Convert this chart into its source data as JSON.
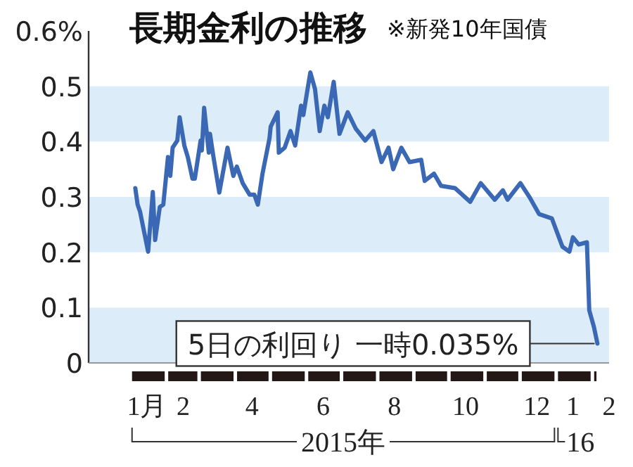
{
  "chart_data": {
    "type": "line",
    "title": "長期金利の推移",
    "subtitle": "※新発10年国債",
    "x": [
      "2015-01-05",
      "2015-01-07",
      "2015-01-09",
      "2015-01-16",
      "2015-01-20",
      "2015-01-22",
      "2015-01-26",
      "2015-01-29",
      "2015-02-02",
      "2015-02-04",
      "2015-02-06",
      "2015-02-10",
      "2015-02-12",
      "2015-02-16",
      "2015-02-19",
      "2015-02-23",
      "2015-02-25",
      "2015-03-02",
      "2015-03-03",
      "2015-03-05",
      "2015-03-09",
      "2015-03-10",
      "2015-03-13",
      "2015-03-18",
      "2015-03-25",
      "2015-03-30",
      "2015-04-02",
      "2015-04-07",
      "2015-04-13",
      "2015-04-17",
      "2015-04-20",
      "2015-04-24",
      "2015-04-30",
      "2015-05-01",
      "2015-05-07",
      "2015-05-08",
      "2015-05-13",
      "2015-05-18",
      "2015-05-22",
      "2015-05-27",
      "2015-05-29",
      "2015-06-01",
      "2015-06-04",
      "2015-06-08",
      "2015-06-12",
      "2015-06-16",
      "2015-06-19",
      "2015-06-24",
      "2015-06-29",
      "2015-07-06",
      "2015-07-13",
      "2015-07-21",
      "2015-07-28",
      "2015-08-04",
      "2015-08-10",
      "2015-08-14",
      "2015-08-21",
      "2015-08-28",
      "2015-09-07",
      "2015-09-10",
      "2015-09-18",
      "2015-09-24",
      "2015-10-06",
      "2015-10-19",
      "2015-10-28",
      "2015-11-09",
      "2015-11-16",
      "2015-11-20",
      "2015-12-01",
      "2015-12-09",
      "2015-12-17",
      "2015-12-28",
      "2016-01-06",
      "2016-01-12",
      "2016-01-15",
      "2016-01-20",
      "2016-01-27",
      "2016-01-29",
      "2016-02-02",
      "2016-02-05"
    ],
    "series": [
      {
        "color": "#3a68b4",
        "values": [
          0.316,
          0.286,
          0.274,
          0.201,
          0.309,
          0.222,
          0.282,
          0.286,
          0.372,
          0.338,
          0.389,
          0.402,
          0.444,
          0.393,
          0.372,
          0.333,
          0.333,
          0.402,
          0.384,
          0.461,
          0.38,
          0.414,
          0.372,
          0.308,
          0.389,
          0.338,
          0.355,
          0.325,
          0.304,
          0.304,
          0.286,
          0.342,
          0.406,
          0.427,
          0.453,
          0.38,
          0.389,
          0.419,
          0.393,
          0.465,
          0.448,
          0.487,
          0.525,
          0.495,
          0.419,
          0.465,
          0.444,
          0.508,
          0.414,
          0.453,
          0.423,
          0.402,
          0.419,
          0.363,
          0.389,
          0.35,
          0.389,
          0.363,
          0.367,
          0.329,
          0.342,
          0.32,
          0.316,
          0.291,
          0.325,
          0.295,
          0.312,
          0.295,
          0.325,
          0.299,
          0.269,
          0.261,
          0.21,
          0.201,
          0.227,
          0.214,
          0.218,
          0.095,
          0.065,
          0.035
        ]
      }
    ],
    "xlim": [
      "2014-11-26",
      "2016-02-15"
    ],
    "xticks": [
      {
        "value": "2015-01-15",
        "label": "1月"
      },
      {
        "value": "2015-02-15",
        "label": "2"
      },
      {
        "value": "2015-04-15",
        "label": "4"
      },
      {
        "value": "2015-06-15",
        "label": "6"
      },
      {
        "value": "2015-08-15",
        "label": "8"
      },
      {
        "value": "2015-10-15",
        "label": "10"
      },
      {
        "value": "2015-12-15",
        "label": "12"
      },
      {
        "value": "2016-01-15",
        "label": "1"
      },
      {
        "value": "2016-02-15",
        "label": "2"
      }
    ],
    "ylim": [
      0,
      0.6
    ],
    "yticks": [
      {
        "value": 0.6,
        "label": "0.6%"
      },
      0.5,
      0.4,
      0.3,
      0.2,
      0.1,
      0
    ],
    "bands": [
      {
        "axis": "y",
        "from": 0,
        "to": 0.1,
        "color": "#dcedf9"
      },
      {
        "axis": "y",
        "from": 0.2,
        "to": 0.3,
        "color": "#dcedf9"
      },
      {
        "axis": "y",
        "from": 0.4,
        "to": 0.5,
        "color": "#dcedf9"
      }
    ],
    "annotations": [
      {
        "text": "5日の利回り 一時0.035%",
        "x": "2016-02-05",
        "y": 0.035
      },
      "2015年",
      "16"
    ],
    "grid": false
  }
}
